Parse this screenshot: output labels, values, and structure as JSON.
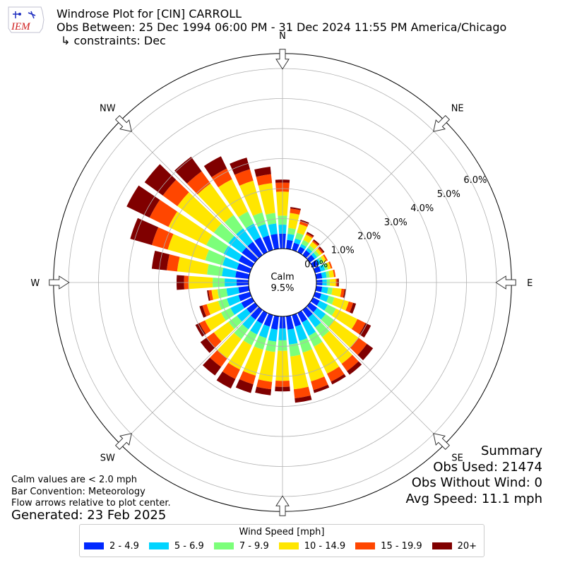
{
  "header": {
    "title": "Windrose Plot for [CIN] CARROLL",
    "obs_range": "Obs Between: 25 Dec 1994 06:00 PM - 31 Dec 2024 11:55 PM America/Chicago",
    "constraints": "↳ constraints: Dec",
    "logo_text": "IEM"
  },
  "notes": {
    "calm_note": "Calm values are < 2.0 mph",
    "bar_convention": "Bar Convention: Meteorology",
    "flow_arrows": "Flow arrows relative to plot center.",
    "generated": "Generated: 23 Feb 2025"
  },
  "summary": {
    "title": "Summary",
    "obs_used": "Obs Used: 21474",
    "obs_without_wind": "Obs Without Wind: 0",
    "avg_speed": "Avg Speed: 11.1 mph"
  },
  "colors": {
    "bins": [
      "#0028ff",
      "#00d4ff",
      "#7cff7a",
      "#ffe600",
      "#ff4600",
      "#800000"
    ],
    "grid": "#b0b0b0",
    "outline": "#000000"
  },
  "chart_data": {
    "type": "windrose",
    "calm_label": "Calm",
    "calm_value": "9.5%",
    "direction_labels": [
      "N",
      "NE",
      "E",
      "SE",
      "S",
      "SW",
      "W",
      "NW"
    ],
    "radial_tick_labels": [
      "0.0%",
      "1.0%",
      "2.0%",
      "3.0%",
      "4.0%",
      "5.0%",
      "6.0%"
    ],
    "radial_ticks": [
      0,
      1,
      2,
      3,
      4,
      5,
      6
    ],
    "rlim": [
      0,
      6.5
    ],
    "directions_deg": [
      0,
      10,
      20,
      30,
      40,
      50,
      60,
      70,
      80,
      90,
      100,
      110,
      120,
      130,
      140,
      150,
      160,
      170,
      180,
      190,
      200,
      210,
      220,
      230,
      240,
      250,
      260,
      270,
      280,
      290,
      300,
      310,
      320,
      330,
      340,
      350
    ],
    "legend_title": "Wind Speed [mph]",
    "series": [
      {
        "name": "2 - 4.9",
        "values": [
          0.5,
          0.3,
          0.25,
          0.2,
          0.2,
          0.2,
          0.2,
          0.2,
          0.2,
          0.2,
          0.2,
          0.22,
          0.25,
          0.3,
          0.32,
          0.35,
          0.4,
          0.45,
          0.4,
          0.45,
          0.4,
          0.4,
          0.4,
          0.35,
          0.4,
          0.4,
          0.35,
          0.4,
          0.45,
          0.45,
          0.5,
          0.55,
          0.55,
          0.55,
          0.5,
          0.5
        ]
      },
      {
        "name": "5 - 6.9",
        "values": [
          0.3,
          0.2,
          0.15,
          0.1,
          0.1,
          0.1,
          0.1,
          0.15,
          0.15,
          0.15,
          0.2,
          0.25,
          0.3,
          0.35,
          0.4,
          0.5,
          0.5,
          0.5,
          0.4,
          0.4,
          0.4,
          0.4,
          0.4,
          0.4,
          0.4,
          0.4,
          0.4,
          0.4,
          0.45,
          0.5,
          0.55,
          0.55,
          0.55,
          0.5,
          0.4,
          0.35
        ]
      },
      {
        "name": "7 - 9.9",
        "values": [
          0.3,
          0.2,
          0.2,
          0.15,
          0.1,
          0.1,
          0.1,
          0.1,
          0.1,
          0.1,
          0.15,
          0.2,
          0.3,
          0.35,
          0.4,
          0.4,
          0.4,
          0.4,
          0.35,
          0.35,
          0.4,
          0.4,
          0.4,
          0.35,
          0.35,
          0.3,
          0.3,
          0.4,
          0.5,
          0.6,
          0.65,
          0.6,
          0.55,
          0.45,
          0.4,
          0.35
        ]
      },
      {
        "name": "10 - 14.9",
        "values": [
          0.8,
          0.5,
          0.3,
          0.2,
          0.15,
          0.1,
          0.1,
          0.1,
          0.15,
          0.2,
          0.3,
          0.5,
          0.8,
          1.0,
          1.1,
          1.0,
          1.0,
          1.1,
          1.0,
          1.0,
          0.9,
          0.9,
          0.8,
          0.6,
          0.6,
          0.4,
          0.2,
          0.8,
          1.0,
          1.3,
          1.4,
          1.5,
          1.3,
          1.2,
          1.1,
          1.0
        ]
      },
      {
        "name": "15 - 19.9",
        "values": [
          0.3,
          0.15,
          0.1,
          0.05,
          0.05,
          0.05,
          0.05,
          0.05,
          0.05,
          0.05,
          0.1,
          0.15,
          0.3,
          0.35,
          0.3,
          0.3,
          0.3,
          0.3,
          0.2,
          0.25,
          0.3,
          0.35,
          0.35,
          0.3,
          0.2,
          0.15,
          0.1,
          0.15,
          0.35,
          0.55,
          0.7,
          0.6,
          0.5,
          0.4,
          0.4,
          0.3
        ]
      },
      {
        "name": "20+",
        "values": [
          0.1,
          0.05,
          0.05,
          0.05,
          0.05,
          0.05,
          0.0,
          0.0,
          0.0,
          0.05,
          0.05,
          0.1,
          0.2,
          0.25,
          0.15,
          0.1,
          0.1,
          0.15,
          0.15,
          0.2,
          0.3,
          0.35,
          0.35,
          0.25,
          0.15,
          0.1,
          0.05,
          0.25,
          0.5,
          0.75,
          0.85,
          0.75,
          0.6,
          0.45,
          0.4,
          0.25
        ]
      }
    ]
  }
}
